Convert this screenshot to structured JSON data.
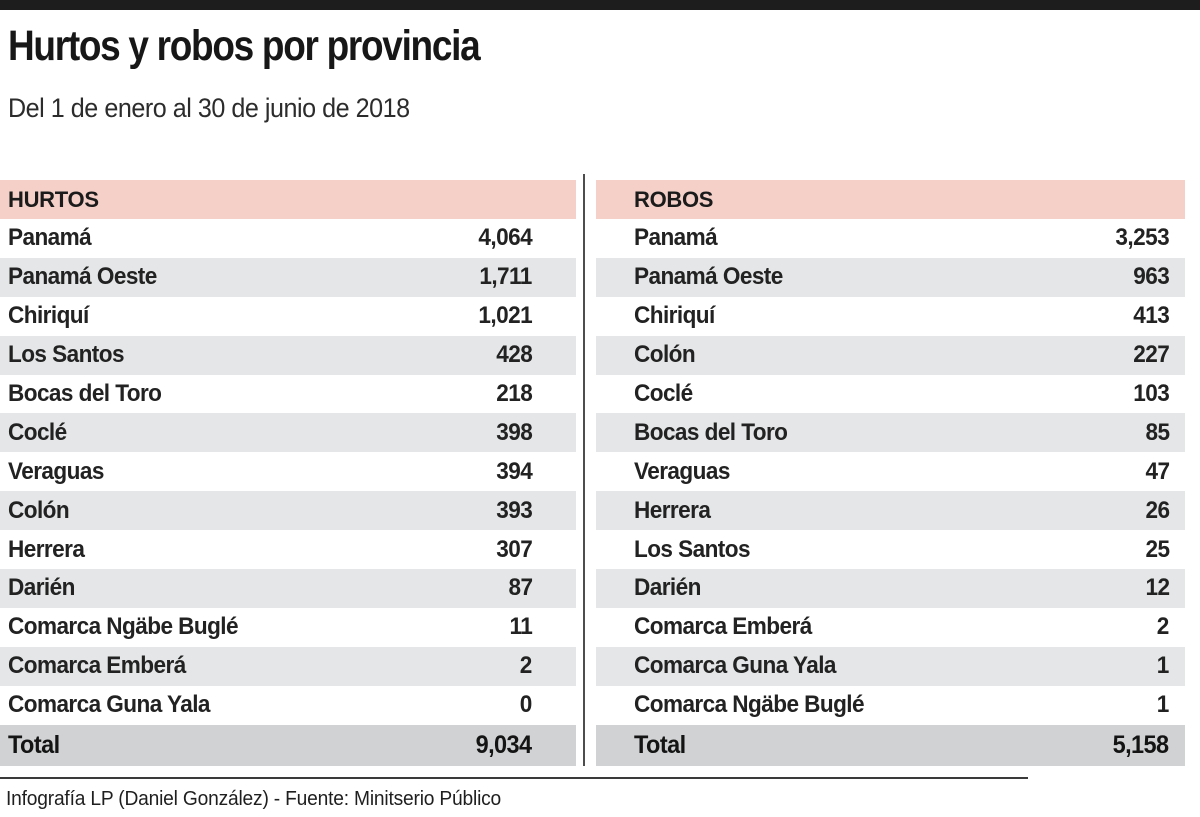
{
  "header": {
    "title": "Hurtos y robos por provincia",
    "subtitle": "Del 1 de enero al 30 de junio de 2018"
  },
  "colors": {
    "top_bar": "#1d1d1d",
    "header_pink": "#f4d0c8",
    "row_alt_gray": "#e4e6e7",
    "total_gray": "#d0d2d3"
  },
  "chart_data": [
    {
      "type": "table",
      "title": "HURTOS",
      "rows": [
        [
          "Panamá",
          "4,064"
        ],
        [
          "Panamá Oeste",
          "1,711"
        ],
        [
          "Chiriquí",
          "1,021"
        ],
        [
          "Los Santos",
          "428"
        ],
        [
          "Bocas del Toro",
          "218"
        ],
        [
          "Coclé",
          "398"
        ],
        [
          "Veraguas",
          "394"
        ],
        [
          "Colón",
          "393"
        ],
        [
          "Herrera",
          "307"
        ],
        [
          "Darién",
          "87"
        ],
        [
          "Comarca Ngäbe Buglé",
          "11"
        ],
        [
          "Comarca Emberá",
          "2"
        ],
        [
          "Comarca Guna Yala",
          "0"
        ]
      ],
      "total_label": "Total",
      "total_value": "9,034"
    },
    {
      "type": "table",
      "title": "ROBOS",
      "rows": [
        [
          "Panamá",
          "3,253"
        ],
        [
          "Panamá Oeste",
          "963"
        ],
        [
          "Chiriquí",
          "413"
        ],
        [
          "Colón",
          "227"
        ],
        [
          "Coclé",
          "103"
        ],
        [
          "Bocas del Toro",
          "85"
        ],
        [
          "Veraguas",
          "47"
        ],
        [
          "Herrera",
          "26"
        ],
        [
          "Los Santos",
          "25"
        ],
        [
          "Darién",
          "12"
        ],
        [
          "Comarca Emberá",
          "2"
        ],
        [
          "Comarca Guna Yala",
          "1"
        ],
        [
          "Comarca Ngäbe Buglé",
          "1"
        ]
      ],
      "total_label": "Total",
      "total_value": "5,158"
    }
  ],
  "footer": {
    "credit": "Infografía LP (Daniel González) - Fuente: Minitserio Público"
  }
}
